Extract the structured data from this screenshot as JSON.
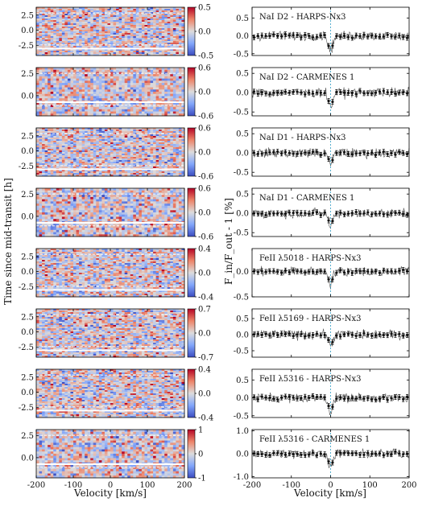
{
  "figure": {
    "left_ylabel": "Time since mid-transit [h]",
    "right_ylabel": "F_in/F_out - 1 [%]",
    "xlabel": "Velocity [km/s]"
  },
  "chart_data": {
    "type": "heatmap+line",
    "grid": false,
    "x_range": [
      -200,
      200
    ],
    "x_ticks": [
      -200,
      -100,
      0,
      100,
      200
    ],
    "heatmap_time_ranges": {
      "HARPS-Nx3": [
        -4.2,
        3.8
      ],
      "CARMENES 1": [
        -2.3,
        3.2
      ]
    },
    "panels": [
      {
        "title": "NaI D2 - HARPS-Nx3",
        "colorbar_range": [
          -0.5,
          0.5
        ],
        "colorbar_ticks": [
          "0.5",
          "0.0",
          "-0.5"
        ],
        "heatmap_yticks": [
          "2.5",
          "0.0",
          "-2.5"
        ],
        "right_ylim": [
          -0.55,
          0.8
        ],
        "right_yticks": [
          "0.5",
          "0.0",
          "-0.5"
        ],
        "absorption_depth": -0.45
      },
      {
        "title": "NaI D2 - CARMENES 1",
        "colorbar_range": [
          -0.6,
          0.6
        ],
        "colorbar_ticks": [
          "0.6",
          "0.0",
          "-0.6"
        ],
        "heatmap_yticks": [
          "2.5",
          "0.0"
        ],
        "right_ylim": [
          -0.6,
          0.65
        ],
        "right_yticks": [
          "0.5",
          "0.0",
          "-0.5"
        ],
        "absorption_depth": -0.4
      },
      {
        "title": "NaI D1 - HARPS-Nx3",
        "colorbar_range": [
          -0.6,
          0.6
        ],
        "colorbar_ticks": [
          "0.6",
          "0.0",
          "-0.6"
        ],
        "heatmap_yticks": [
          "2.5",
          "0.0",
          "-2.5"
        ],
        "right_ylim": [
          -0.6,
          0.65
        ],
        "right_yticks": [
          "0.5",
          "0.0",
          "-0.5"
        ],
        "absorption_depth": -0.3
      },
      {
        "title": "NaI D1 - CARMENES 1",
        "colorbar_range": [
          -0.6,
          0.6
        ],
        "colorbar_ticks": [
          "0.6",
          "0.0",
          "-0.6"
        ],
        "heatmap_yticks": [
          "2.5",
          "0.0"
        ],
        "right_ylim": [
          -0.6,
          0.65
        ],
        "right_yticks": [
          "0.5",
          "0.0",
          "-0.5"
        ],
        "absorption_depth": -0.35
      },
      {
        "title": "FeII λ5018 - HARPS-Nx3",
        "colorbar_range": [
          -0.4,
          0.4
        ],
        "colorbar_ticks": [
          "0.4",
          "0.0",
          "-0.4"
        ],
        "heatmap_yticks": [
          "2.5",
          "0.0",
          "-2.5"
        ],
        "right_ylim": [
          -0.5,
          0.45
        ],
        "right_yticks": [
          "0.0",
          "-0.5"
        ],
        "absorption_depth": -0.25
      },
      {
        "title": "FeII λ5169 - HARPS-Nx3",
        "colorbar_range": [
          -0.7,
          0.7
        ],
        "colorbar_ticks": [
          "0.7",
          "0.0",
          "-0.7"
        ],
        "heatmap_yticks": [
          "2.5",
          "0.0",
          "-2.5"
        ],
        "right_ylim": [
          -0.7,
          0.8
        ],
        "right_yticks": [
          "0.5",
          "0.0",
          "-0.5"
        ],
        "absorption_depth": -0.35
      },
      {
        "title": "FeII λ5316 - HARPS-Nx3",
        "colorbar_range": [
          -0.4,
          0.4
        ],
        "colorbar_ticks": [
          "0.4",
          "0.0",
          "-0.4"
        ],
        "heatmap_yticks": [
          "2.5",
          "0.0",
          "-2.5"
        ],
        "right_ylim": [
          -0.55,
          0.8
        ],
        "right_yticks": [
          "0.5",
          "0.0",
          "-0.5"
        ],
        "absorption_depth": -0.4
      },
      {
        "title": "FeII λ5316 - CARMENES 1",
        "colorbar_range": [
          -1,
          1
        ],
        "colorbar_ticks": [
          "1",
          "0",
          "-1"
        ],
        "heatmap_yticks": [
          "2.5",
          "0.0"
        ],
        "right_ylim": [
          -1.05,
          1.05
        ],
        "right_yticks": [
          "1.0",
          "0.0",
          "-1.0"
        ],
        "absorption_depth": -0.6
      }
    ]
  },
  "colors": {
    "colormap": "coolwarm",
    "spectrum_line": "#555555",
    "binned_points": "#111111",
    "rest_velocity_line": "#2e9cc4",
    "transit_lines": "#ffffff"
  }
}
